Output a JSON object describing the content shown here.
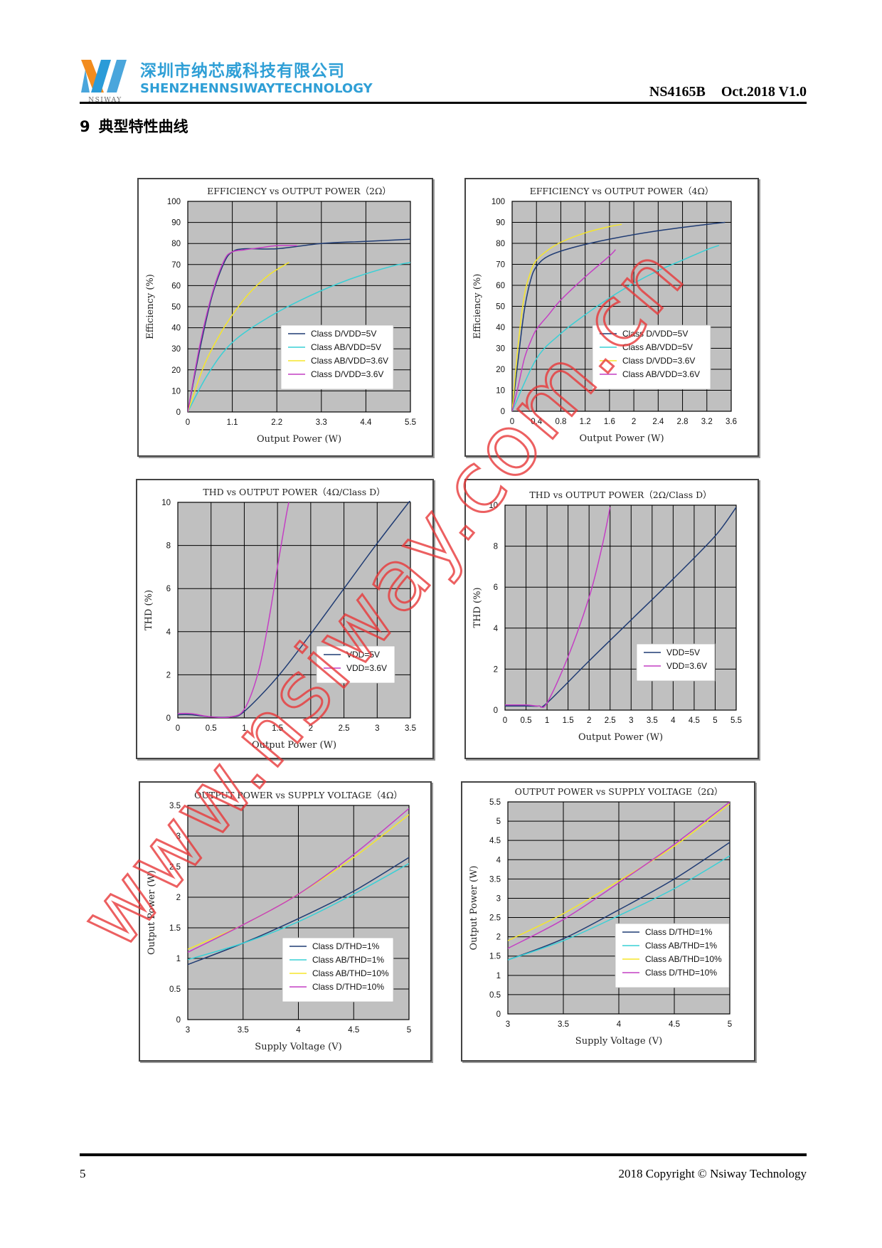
{
  "header": {
    "company_cn": "深圳市纳芯威科技有限公司",
    "company_en": "SHENZHENNSIWAYTECHNOLOGY",
    "logo_text": "NSIWAY",
    "part_number": "NS4165B",
    "revision": "Oct.2018 V1.0"
  },
  "section": {
    "number": "9",
    "title": "典型特性曲线"
  },
  "footer": {
    "page": "5",
    "copyright": "2018 Copyright © Nsiway Technology"
  },
  "watermark": {
    "text": "www.nsiway.com.cn",
    "color": "#e8393a"
  },
  "colors": {
    "plot_bg": "#c0c0c0",
    "grid": "#000000",
    "navy": "#1f3b73",
    "cyan": "#39d0d6",
    "yellow": "#f5e62a",
    "magenta": "#c43fc4"
  },
  "chart_data": [
    {
      "type": "line",
      "title": "EFFICIENCY vs OUTPUT POWER（2Ω）",
      "xlabel": "Output Power (W)",
      "ylabel": "Efficiency (%)",
      "xlim": [
        0,
        5.5
      ],
      "ylim": [
        0,
        100
      ],
      "xticks": [
        0,
        1.1,
        2.2,
        3.3,
        4.4,
        5.5
      ],
      "xtick_labels": [
        "0",
        "1.1",
        "2.2",
        "3.3",
        "4.4",
        "5.5"
      ],
      "yticks": [
        0,
        10,
        20,
        30,
        40,
        50,
        60,
        70,
        80,
        90,
        100
      ],
      "ytick_labels": [
        "0",
        "10",
        "20",
        "30",
        "40",
        "50",
        "60",
        "70",
        "80",
        "90",
        "100"
      ],
      "grid": true,
      "legend_position": "bottom-right",
      "series": [
        {
          "name": "Class D/VDD=5V",
          "color": "#1f3b73",
          "points": [
            [
              0,
              0
            ],
            [
              0.3,
              30
            ],
            [
              0.6,
              55
            ],
            [
              0.9,
              71
            ],
            [
              1.1,
              76
            ],
            [
              1.4,
              77.5
            ],
            [
              2.2,
              77.5
            ],
            [
              3.3,
              80
            ],
            [
              4.4,
              81
            ],
            [
              5.5,
              82
            ]
          ]
        },
        {
          "name": "Class AB/VDD=5V",
          "color": "#39d0d6",
          "points": [
            [
              0,
              0
            ],
            [
              0.5,
              18
            ],
            [
              1.1,
              33
            ],
            [
              2.0,
              45
            ],
            [
              3.0,
              55
            ],
            [
              4.0,
              63
            ],
            [
              5.0,
              69
            ],
            [
              5.5,
              71
            ]
          ]
        },
        {
          "name": "Class AB/VDD=3.6V",
          "color": "#f5e62a",
          "points": [
            [
              0,
              0
            ],
            [
              0.4,
              22
            ],
            [
              0.8,
              37
            ],
            [
              1.1,
              46
            ],
            [
              1.5,
              56
            ],
            [
              2.0,
              65
            ],
            [
              2.5,
              71
            ]
          ]
        },
        {
          "name": "Class D/VDD=3.6V",
          "color": "#c43fc4",
          "points": [
            [
              0,
              0
            ],
            [
              0.3,
              32
            ],
            [
              0.6,
              56
            ],
            [
              0.9,
              72
            ],
            [
              1.1,
              76
            ],
            [
              1.4,
              77
            ],
            [
              1.8,
              78
            ],
            [
              2.2,
              79
            ],
            [
              2.7,
              79
            ]
          ]
        }
      ]
    },
    {
      "type": "line",
      "title": "EFFICIENCY vs OUTPUT POWER（4Ω）",
      "xlabel": "Output Power (W)",
      "ylabel": "Efficiency (%)",
      "xlim": [
        0,
        3.6
      ],
      "ylim": [
        0,
        100
      ],
      "xticks": [
        0,
        0.4,
        0.8,
        1.2,
        1.6,
        2,
        2.4,
        2.8,
        3.2,
        3.6
      ],
      "xtick_labels": [
        "0",
        "0.4",
        "0.8",
        "1.2",
        "1.6",
        "2",
        "2.4",
        "2.8",
        "3.2",
        "3.6"
      ],
      "yticks": [
        0,
        10,
        20,
        30,
        40,
        50,
        60,
        70,
        80,
        90,
        100
      ],
      "ytick_labels": [
        "0",
        "10",
        "20",
        "30",
        "40",
        "50",
        "60",
        "70",
        "80",
        "90",
        "100"
      ],
      "grid": true,
      "legend_position": "bottom-right",
      "series": [
        {
          "name": "Class D/VDD=5V",
          "color": "#1f3b73",
          "points": [
            [
              0,
              0
            ],
            [
              0.1,
              25
            ],
            [
              0.2,
              48
            ],
            [
              0.3,
              62
            ],
            [
              0.4,
              69
            ],
            [
              0.6,
              74
            ],
            [
              1.0,
              78
            ],
            [
              1.6,
              82
            ],
            [
              2.4,
              86
            ],
            [
              3.2,
              89
            ],
            [
              3.5,
              90
            ]
          ]
        },
        {
          "name": "Class AB/VDD=5V",
          "color": "#39d0d6",
          "points": [
            [
              0,
              0
            ],
            [
              0.4,
              25
            ],
            [
              0.8,
              37
            ],
            [
              1.2,
              46
            ],
            [
              1.6,
              54
            ],
            [
              2.0,
              61
            ],
            [
              2.4,
              67
            ],
            [
              2.8,
              72
            ],
            [
              3.2,
              77
            ],
            [
              3.4,
              79
            ]
          ]
        },
        {
          "name": "Class D/VDD=3.6V",
          "color": "#f5e62a",
          "points": [
            [
              0,
              0
            ],
            [
              0.1,
              32
            ],
            [
              0.2,
              55
            ],
            [
              0.3,
              66
            ],
            [
              0.4,
              72
            ],
            [
              0.6,
              77
            ],
            [
              0.8,
              80.5
            ],
            [
              1.2,
              85
            ],
            [
              1.6,
              88
            ],
            [
              1.8,
              89
            ]
          ]
        },
        {
          "name": "Class AB/VDD=3.6V",
          "color": "#c43fc4",
          "points": [
            [
              0,
              0
            ],
            [
              0.1,
              12
            ],
            [
              0.2,
              25
            ],
            [
              0.3,
              33
            ],
            [
              0.4,
              39
            ],
            [
              0.6,
              46
            ],
            [
              0.8,
              53
            ],
            [
              1.2,
              64
            ],
            [
              1.6,
              74
            ],
            [
              1.7,
              77
            ]
          ]
        }
      ]
    },
    {
      "type": "line",
      "title": "THD vs OUTPUT POWER（4Ω/Class D）",
      "xlabel": "Output Power (W)",
      "ylabel": "THD (%)",
      "xlim": [
        0,
        3.5
      ],
      "ylim": [
        0,
        10
      ],
      "xticks": [
        0,
        0.5,
        1,
        1.5,
        2,
        2.5,
        3,
        3.5
      ],
      "xtick_labels": [
        "0",
        "0.5",
        "1",
        "1.5",
        "2",
        "2.5",
        "3",
        "3.5"
      ],
      "yticks": [
        0,
        2,
        4,
        6,
        8,
        10
      ],
      "ytick_labels": [
        "0",
        "2",
        "4",
        "6",
        "8",
        "10"
      ],
      "grid": true,
      "legend_position": "bottom-right",
      "series": [
        {
          "name": "VDD=5V",
          "color": "#1f3b73",
          "points": [
            [
              0,
              0.15
            ],
            [
              0.2,
              0.15
            ],
            [
              0.5,
              0.05
            ],
            [
              0.8,
              0.05
            ],
            [
              1.0,
              0.3
            ],
            [
              1.5,
              1.9
            ],
            [
              2.0,
              3.9
            ],
            [
              2.5,
              6.0
            ],
            [
              3.0,
              8.1
            ],
            [
              3.5,
              10.1
            ]
          ]
        },
        {
          "name": "VDD=3.6V",
          "color": "#c43fc4",
          "points": [
            [
              0,
              0.2
            ],
            [
              0.2,
              0.2
            ],
            [
              0.5,
              0.05
            ],
            [
              0.8,
              0.05
            ],
            [
              1.0,
              0.4
            ],
            [
              1.2,
              2.0
            ],
            [
              1.35,
              4.2
            ],
            [
              1.5,
              7.0
            ],
            [
              1.62,
              9.2
            ],
            [
              1.67,
              10
            ]
          ]
        }
      ]
    },
    {
      "type": "line",
      "title": "THD vs OUTPUT POWER（2Ω/Class D）",
      "xlabel": "Output Power (W)",
      "ylabel": "THD (%)",
      "xlim": [
        0,
        5.5
      ],
      "ylim": [
        0,
        10
      ],
      "xticks": [
        0,
        0.5,
        1,
        1.5,
        2,
        2.5,
        3,
        3.5,
        4,
        4.5,
        5,
        5.5
      ],
      "xtick_labels": [
        "0",
        "0.5",
        "1",
        "1.5",
        "2",
        "2.5",
        "3",
        "3.5",
        "4",
        "4.5",
        "5",
        "5.5"
      ],
      "yticks": [
        0,
        2,
        4,
        6,
        8,
        10
      ],
      "ytick_labels": [
        "0",
        "2",
        "4",
        "6",
        "8",
        "10"
      ],
      "grid": true,
      "legend_position": "bottom-right",
      "series": [
        {
          "name": "VDD=5V",
          "color": "#1f3b73",
          "points": [
            [
              0,
              0.2
            ],
            [
              0.5,
              0.2
            ],
            [
              0.8,
              0.2
            ],
            [
              1.0,
              0.35
            ],
            [
              2.0,
              2.4
            ],
            [
              3.0,
              4.4
            ],
            [
              4.0,
              6.4
            ],
            [
              5.0,
              8.5
            ],
            [
              5.5,
              9.9
            ]
          ]
        },
        {
          "name": "VDD=3.6V",
          "color": "#c43fc4",
          "points": [
            [
              0,
              0.25
            ],
            [
              0.5,
              0.25
            ],
            [
              0.8,
              0.2
            ],
            [
              1.0,
              0.35
            ],
            [
              1.5,
              2.6
            ],
            [
              2.0,
              5.5
            ],
            [
              2.3,
              7.9
            ],
            [
              2.5,
              9.9
            ]
          ]
        }
      ]
    },
    {
      "type": "line",
      "title": "OUTPUT POWER vs SUPPLY VOLTAGE（4Ω）",
      "xlabel": "Supply Voltage (V)",
      "ylabel": "Output Power (W)",
      "xlim": [
        3,
        5
      ],
      "ylim": [
        0,
        3.5
      ],
      "xticks": [
        3,
        3.5,
        4,
        4.5,
        5
      ],
      "xtick_labels": [
        "3",
        "3.5",
        "4",
        "4.5",
        "5"
      ],
      "yticks": [
        0,
        0.5,
        1,
        1.5,
        2,
        2.5,
        3,
        3.5
      ],
      "ytick_labels": [
        "0",
        "0.5",
        "1",
        "1.5",
        "2",
        "2.5",
        "3",
        "3.5"
      ],
      "grid": true,
      "legend_position": "bottom-right",
      "series": [
        {
          "name": "Class D/THD=1%",
          "color": "#1f3b73",
          "points": [
            [
              3.0,
              0.9
            ],
            [
              3.5,
              1.25
            ],
            [
              4.0,
              1.65
            ],
            [
              4.5,
              2.1
            ],
            [
              5.0,
              2.65
            ]
          ]
        },
        {
          "name": "Class AB/THD=1%",
          "color": "#39d0d6",
          "points": [
            [
              3.0,
              0.98
            ],
            [
              3.5,
              1.25
            ],
            [
              4.0,
              1.6
            ],
            [
              4.5,
              2.05
            ],
            [
              5.0,
              2.55
            ]
          ]
        },
        {
          "name": "Class AB/THD=10%",
          "color": "#f5e62a",
          "points": [
            [
              3.0,
              1.15
            ],
            [
              3.5,
              1.55
            ],
            [
              4.0,
              2.05
            ],
            [
              4.5,
              2.65
            ],
            [
              5.0,
              3.35
            ]
          ]
        },
        {
          "name": "Class D/THD=10%",
          "color": "#c43fc4",
          "points": [
            [
              3.0,
              1.1
            ],
            [
              3.5,
              1.55
            ],
            [
              4.0,
              2.05
            ],
            [
              4.5,
              2.7
            ],
            [
              5.0,
              3.45
            ]
          ]
        }
      ]
    },
    {
      "type": "line",
      "title": "OUTPUT POWER vs SUPPLY VOLTAGE（2Ω）",
      "xlabel": "Supply Voltage (V)",
      "ylabel": "Output Power (W)",
      "xlim": [
        3,
        5
      ],
      "ylim": [
        0,
        5.5
      ],
      "xticks": [
        3,
        3.5,
        4,
        4.5,
        5
      ],
      "xtick_labels": [
        "3",
        "3.5",
        "4",
        "4.5",
        "5"
      ],
      "yticks": [
        0,
        0.5,
        1,
        1.5,
        2,
        2.5,
        3,
        3.5,
        4,
        4.5,
        5,
        5.5
      ],
      "ytick_labels": [
        "0",
        "0.5",
        "1",
        "1.5",
        "2",
        "2.5",
        "3",
        "3.5",
        "4",
        "4.5",
        "5",
        "5.5"
      ],
      "grid": true,
      "legend_position": "bottom-right",
      "series": [
        {
          "name": "Class D/THD=1%",
          "color": "#1f3b73",
          "points": [
            [
              3.0,
              1.4
            ],
            [
              3.5,
              1.95
            ],
            [
              4.0,
              2.7
            ],
            [
              4.5,
              3.5
            ],
            [
              5.0,
              4.45
            ]
          ]
        },
        {
          "name": "Class AB/THD=1%",
          "color": "#39d0d6",
          "points": [
            [
              3.0,
              1.4
            ],
            [
              3.5,
              1.9
            ],
            [
              4.0,
              2.55
            ],
            [
              4.5,
              3.25
            ],
            [
              5.0,
              4.1
            ]
          ]
        },
        {
          "name": "Class AB/THD=10%",
          "color": "#f5e62a",
          "points": [
            [
              3.0,
              1.9
            ],
            [
              3.5,
              2.6
            ],
            [
              4.0,
              3.45
            ],
            [
              4.5,
              4.35
            ],
            [
              5.0,
              5.45
            ]
          ]
        },
        {
          "name": "Class D/THD=10%",
          "color": "#c43fc4",
          "points": [
            [
              3.0,
              1.7
            ],
            [
              3.5,
              2.45
            ],
            [
              4.0,
              3.4
            ],
            [
              4.5,
              4.4
            ],
            [
              5.0,
              5.5
            ]
          ]
        }
      ]
    }
  ]
}
